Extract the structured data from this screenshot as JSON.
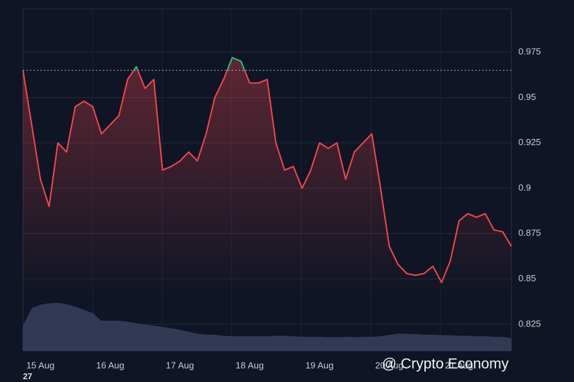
{
  "chart_data": {
    "type": "line",
    "categories": [
      null,
      null,
      "15 Aug",
      null,
      null,
      null,
      null,
      null,
      null,
      null,
      "16 Aug",
      null,
      null,
      null,
      null,
      null,
      null,
      null,
      "17 Aug",
      null,
      null,
      null,
      null,
      null,
      null,
      null,
      "18 Aug",
      null,
      null,
      null,
      null,
      null,
      null,
      null,
      "19 Aug",
      null,
      null,
      null,
      null,
      null,
      null,
      null,
      "20 Aug",
      null,
      null,
      null,
      null,
      null,
      null,
      null,
      "21 Aug",
      null,
      null,
      null,
      null,
      null,
      null
    ],
    "series": [
      {
        "name": "price",
        "color": "#f0474f",
        "up_color": "#2ebd85",
        "values": [
          0.965,
          0.935,
          0.905,
          0.89,
          0.925,
          0.92,
          0.945,
          0.948,
          0.945,
          0.93,
          0.935,
          0.94,
          0.96,
          0.967,
          0.955,
          0.96,
          0.91,
          0.912,
          0.915,
          0.92,
          0.915,
          0.93,
          0.95,
          0.96,
          0.972,
          0.97,
          0.958,
          0.958,
          0.96,
          0.925,
          0.91,
          0.912,
          0.9,
          0.91,
          0.925,
          0.922,
          0.925,
          0.905,
          0.92,
          0.925,
          0.93,
          0.9,
          0.868,
          0.858,
          0.853,
          0.852,
          0.853,
          0.857,
          0.848,
          0.86,
          0.882,
          0.886,
          0.884,
          0.886,
          0.877,
          0.876,
          0.868
        ]
      },
      {
        "name": "volume",
        "color": "#37405e",
        "axis": "y2",
        "values": [
          50,
          85,
          92,
          95,
          96,
          93,
          88,
          82,
          75,
          60,
          60,
          60,
          58,
          55,
          52,
          50,
          48,
          45,
          42,
          38,
          34,
          32,
          32,
          30,
          29,
          29,
          29,
          29,
          29,
          30,
          30,
          29,
          28,
          28,
          28,
          27,
          27,
          28,
          27,
          28,
          28,
          29,
          32,
          34,
          34,
          33,
          32,
          32,
          31,
          31,
          30,
          30,
          29,
          29,
          28,
          28,
          25
        ]
      }
    ],
    "baseline": 0.965,
    "ylim": [
      0.8104,
      0.9988
    ],
    "yticks": [
      0.825,
      0.85,
      0.875,
      0.9,
      0.925,
      0.95,
      0.975
    ],
    "y2lim": [
      0,
      100
    ],
    "grid": true,
    "watermark": "@ Crypto Economy",
    "corner_label": "27"
  }
}
